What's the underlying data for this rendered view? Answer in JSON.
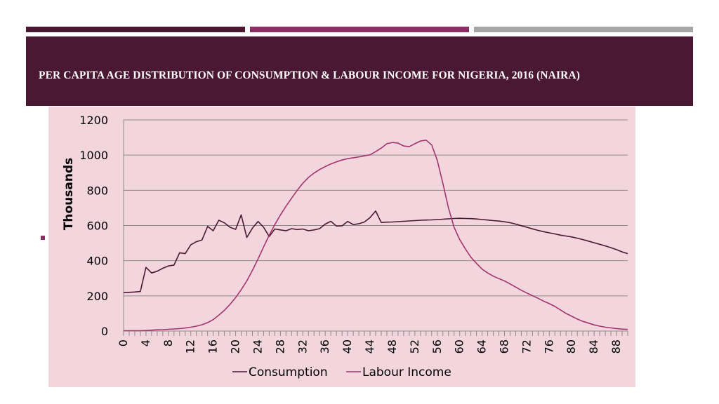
{
  "slide": {
    "title": "PER CAPITA AGE DISTRIBUTION OF CONSUMPTION & LABOUR INCOME FOR NIGERIA, 2016 (NAIRA)"
  },
  "colors": {
    "title_band": "#4a1832",
    "accent_bar_1": "#4a1832",
    "accent_bar_2": "#8e2f64",
    "accent_bar_3": "#a6a6a6",
    "chart_background": "#f2d5dd",
    "consumption_line": "#4a1832",
    "labour_income_line": "#a3356d"
  },
  "chart_data": {
    "type": "line",
    "title": "",
    "xlabel": "",
    "ylabel": "Thousands",
    "ylim": [
      0,
      1200
    ],
    "yticks": [
      0,
      200,
      400,
      600,
      800,
      1000,
      1200
    ],
    "xlim": [
      0,
      90
    ],
    "xticks": [
      0,
      4,
      8,
      12,
      16,
      20,
      24,
      28,
      32,
      36,
      40,
      44,
      48,
      52,
      56,
      60,
      64,
      68,
      72,
      76,
      80,
      84,
      88
    ],
    "grid": true,
    "legend_position": "bottom",
    "x": [
      0,
      1,
      2,
      3,
      4,
      5,
      6,
      7,
      8,
      9,
      10,
      11,
      12,
      13,
      14,
      15,
      16,
      17,
      18,
      19,
      20,
      21,
      22,
      23,
      24,
      25,
      26,
      27,
      28,
      29,
      30,
      31,
      32,
      33,
      34,
      35,
      36,
      37,
      38,
      39,
      40,
      41,
      42,
      43,
      44,
      45,
      46,
      47,
      48,
      49,
      50,
      51,
      52,
      53,
      54,
      55,
      56,
      57,
      58,
      59,
      60,
      61,
      62,
      63,
      64,
      65,
      66,
      67,
      68,
      69,
      70,
      71,
      72,
      73,
      74,
      75,
      76,
      77,
      78,
      79,
      80,
      81,
      82,
      83,
      84,
      85,
      86,
      87,
      88,
      89,
      90
    ],
    "series": [
      {
        "name": "Consumption",
        "values": [
          218,
          220,
          222,
          225,
          362,
          330,
          340,
          357,
          370,
          375,
          445,
          440,
          490,
          508,
          518,
          595,
          570,
          630,
          615,
          590,
          578,
          660,
          532,
          585,
          623,
          590,
          538,
          580,
          575,
          570,
          582,
          577,
          580,
          570,
          575,
          582,
          608,
          624,
          597,
          598,
          623,
          605,
          610,
          620,
          645,
          682,
          617,
          619,
          620,
          622,
          624,
          626,
          628,
          630,
          631,
          632,
          634,
          636,
          638,
          640,
          641,
          640,
          639,
          637,
          634,
          631,
          628,
          625,
          621,
          616,
          608,
          599,
          590,
          581,
          572,
          565,
          558,
          552,
          545,
          540,
          535,
          528,
          520,
          511,
          502,
          493,
          484,
          474,
          463,
          450,
          440
        ]
      },
      {
        "name": "Labour Income",
        "values": [
          2,
          2,
          2,
          2,
          3,
          5,
          7,
          8,
          10,
          12,
          14,
          17,
          22,
          28,
          36,
          48,
          65,
          90,
          118,
          152,
          190,
          235,
          285,
          345,
          410,
          478,
          545,
          605,
          660,
          710,
          755,
          800,
          840,
          873,
          898,
          918,
          935,
          950,
          962,
          972,
          980,
          985,
          990,
          996,
          1002,
          1020,
          1040,
          1065,
          1072,
          1068,
          1052,
          1048,
          1065,
          1080,
          1085,
          1058,
          970,
          840,
          700,
          590,
          520,
          468,
          420,
          385,
          352,
          330,
          312,
          298,
          285,
          268,
          250,
          232,
          216,
          201,
          186,
          170,
          156,
          140,
          120,
          100,
          84,
          68,
          55,
          45,
          35,
          28,
          22,
          18,
          14,
          11,
          9
        ]
      }
    ]
  }
}
